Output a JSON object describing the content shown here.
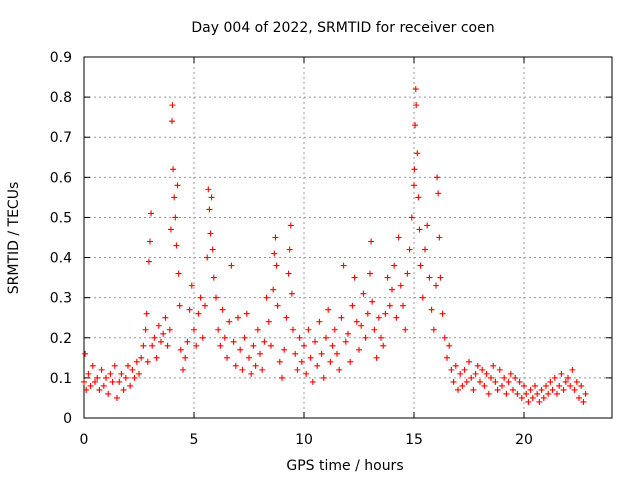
{
  "chart_data": {
    "type": "scatter",
    "title": "Day 004 of 2022, SRMTID for receiver coen",
    "xlabel": "GPS time / hours",
    "ylabel": "SRMTID / TECUs",
    "xlim": [
      0,
      24
    ],
    "ylim": [
      0,
      0.9
    ],
    "xticks": [
      0,
      5,
      10,
      15,
      20
    ],
    "yticks": [
      0,
      0.1,
      0.2,
      0.3,
      0.4,
      0.5,
      0.6,
      0.7,
      0.8,
      0.9
    ],
    "grid": true,
    "marker": "+",
    "color": "#ff0000",
    "series": [
      {
        "name": "SRMTID",
        "points": [
          [
            0.0,
            0.09
          ],
          [
            0.05,
            0.16
          ],
          [
            0.1,
            0.07
          ],
          [
            0.2,
            0.11
          ],
          [
            0.3,
            0.08
          ],
          [
            0.4,
            0.13
          ],
          [
            0.5,
            0.09
          ],
          [
            0.6,
            0.1
          ],
          [
            0.7,
            0.07
          ],
          [
            0.8,
            0.12
          ],
          [
            0.9,
            0.08
          ],
          [
            1.0,
            0.1
          ],
          [
            1.1,
            0.06
          ],
          [
            1.2,
            0.11
          ],
          [
            1.3,
            0.09
          ],
          [
            1.4,
            0.13
          ],
          [
            1.5,
            0.05
          ],
          [
            1.6,
            0.09
          ],
          [
            1.7,
            0.11
          ],
          [
            1.8,
            0.07
          ],
          [
            1.9,
            0.1
          ],
          [
            2.0,
            0.13
          ],
          [
            2.1,
            0.08
          ],
          [
            2.2,
            0.12
          ],
          [
            2.3,
            0.1
          ],
          [
            2.4,
            0.14
          ],
          [
            2.5,
            0.11
          ],
          [
            2.6,
            0.15
          ],
          [
            2.7,
            0.18
          ],
          [
            2.8,
            0.22
          ],
          [
            2.85,
            0.26
          ],
          [
            2.9,
            0.14
          ],
          [
            2.95,
            0.39
          ],
          [
            3.0,
            0.44
          ],
          [
            3.05,
            0.51
          ],
          [
            3.1,
            0.18
          ],
          [
            3.2,
            0.2
          ],
          [
            3.3,
            0.15
          ],
          [
            3.4,
            0.23
          ],
          [
            3.5,
            0.19
          ],
          [
            3.6,
            0.21
          ],
          [
            3.7,
            0.25
          ],
          [
            3.8,
            0.18
          ],
          [
            3.9,
            0.22
          ],
          [
            3.95,
            0.47
          ],
          [
            4.0,
            0.74
          ],
          [
            4.02,
            0.78
          ],
          [
            4.05,
            0.62
          ],
          [
            4.1,
            0.55
          ],
          [
            4.15,
            0.5
          ],
          [
            4.2,
            0.43
          ],
          [
            4.25,
            0.58
          ],
          [
            4.3,
            0.36
          ],
          [
            4.35,
            0.28
          ],
          [
            4.4,
            0.17
          ],
          [
            4.5,
            0.12
          ],
          [
            4.6,
            0.15
          ],
          [
            4.7,
            0.19
          ],
          [
            4.8,
            0.27
          ],
          [
            4.9,
            0.33
          ],
          [
            5.0,
            0.22
          ],
          [
            5.1,
            0.18
          ],
          [
            5.2,
            0.26
          ],
          [
            5.3,
            0.3
          ],
          [
            5.4,
            0.2
          ],
          [
            5.5,
            0.28
          ],
          [
            5.6,
            0.4
          ],
          [
            5.65,
            0.57
          ],
          [
            5.7,
            0.52
          ],
          [
            5.75,
            0.46
          ],
          [
            5.8,
            0.55
          ],
          [
            5.85,
            0.42
          ],
          [
            5.9,
            0.35
          ],
          [
            6.0,
            0.3
          ],
          [
            6.1,
            0.22
          ],
          [
            6.2,
            0.18
          ],
          [
            6.3,
            0.27
          ],
          [
            6.4,
            0.2
          ],
          [
            6.5,
            0.15
          ],
          [
            6.6,
            0.24
          ],
          [
            6.7,
            0.38
          ],
          [
            6.8,
            0.19
          ],
          [
            6.9,
            0.13
          ],
          [
            7.0,
            0.25
          ],
          [
            7.1,
            0.17
          ],
          [
            7.2,
            0.12
          ],
          [
            7.3,
            0.2
          ],
          [
            7.4,
            0.26
          ],
          [
            7.5,
            0.15
          ],
          [
            7.6,
            0.11
          ],
          [
            7.7,
            0.18
          ],
          [
            7.8,
            0.13
          ],
          [
            7.9,
            0.22
          ],
          [
            8.0,
            0.16
          ],
          [
            8.1,
            0.12
          ],
          [
            8.2,
            0.19
          ],
          [
            8.3,
            0.3
          ],
          [
            8.4,
            0.24
          ],
          [
            8.5,
            0.18
          ],
          [
            8.6,
            0.32
          ],
          [
            8.65,
            0.41
          ],
          [
            8.7,
            0.45
          ],
          [
            8.75,
            0.38
          ],
          [
            8.8,
            0.28
          ],
          [
            8.9,
            0.14
          ],
          [
            9.0,
            0.1
          ],
          [
            9.1,
            0.17
          ],
          [
            9.2,
            0.25
          ],
          [
            9.3,
            0.36
          ],
          [
            9.35,
            0.42
          ],
          [
            9.4,
            0.48
          ],
          [
            9.45,
            0.31
          ],
          [
            9.5,
            0.22
          ],
          [
            9.6,
            0.16
          ],
          [
            9.7,
            0.12
          ],
          [
            9.8,
            0.2
          ],
          [
            9.9,
            0.14
          ],
          [
            10.0,
            0.18
          ],
          [
            10.1,
            0.11
          ],
          [
            10.2,
            0.22
          ],
          [
            10.3,
            0.15
          ],
          [
            10.4,
            0.09
          ],
          [
            10.5,
            0.19
          ],
          [
            10.6,
            0.13
          ],
          [
            10.7,
            0.24
          ],
          [
            10.8,
            0.16
          ],
          [
            10.9,
            0.1
          ],
          [
            11.0,
            0.2
          ],
          [
            11.1,
            0.27
          ],
          [
            11.2,
            0.14
          ],
          [
            11.3,
            0.18
          ],
          [
            11.4,
            0.22
          ],
          [
            11.5,
            0.16
          ],
          [
            11.6,
            0.12
          ],
          [
            11.7,
            0.25
          ],
          [
            11.8,
            0.38
          ],
          [
            11.9,
            0.19
          ],
          [
            12.0,
            0.21
          ],
          [
            12.1,
            0.14
          ],
          [
            12.2,
            0.28
          ],
          [
            12.3,
            0.35
          ],
          [
            12.4,
            0.24
          ],
          [
            12.5,
            0.17
          ],
          [
            12.6,
            0.23
          ],
          [
            12.7,
            0.31
          ],
          [
            12.8,
            0.2
          ],
          [
            12.9,
            0.26
          ],
          [
            13.0,
            0.36
          ],
          [
            13.05,
            0.44
          ],
          [
            13.1,
            0.29
          ],
          [
            13.2,
            0.22
          ],
          [
            13.3,
            0.15
          ],
          [
            13.4,
            0.25
          ],
          [
            13.5,
            0.2
          ],
          [
            13.6,
            0.18
          ],
          [
            13.7,
            0.26
          ],
          [
            13.8,
            0.35
          ],
          [
            13.9,
            0.28
          ],
          [
            14.0,
            0.32
          ],
          [
            14.1,
            0.38
          ],
          [
            14.2,
            0.25
          ],
          [
            14.3,
            0.45
          ],
          [
            14.4,
            0.33
          ],
          [
            14.5,
            0.28
          ],
          [
            14.6,
            0.22
          ],
          [
            14.7,
            0.36
          ],
          [
            14.8,
            0.42
          ],
          [
            14.9,
            0.5
          ],
          [
            15.0,
            0.58
          ],
          [
            15.02,
            0.62
          ],
          [
            15.05,
            0.73
          ],
          [
            15.08,
            0.82
          ],
          [
            15.1,
            0.78
          ],
          [
            15.15,
            0.66
          ],
          [
            15.2,
            0.55
          ],
          [
            15.25,
            0.47
          ],
          [
            15.3,
            0.38
          ],
          [
            15.4,
            0.3
          ],
          [
            15.5,
            0.42
          ],
          [
            15.6,
            0.48
          ],
          [
            15.7,
            0.35
          ],
          [
            15.8,
            0.27
          ],
          [
            15.9,
            0.22
          ],
          [
            16.0,
            0.33
          ],
          [
            16.05,
            0.6
          ],
          [
            16.1,
            0.56
          ],
          [
            16.15,
            0.45
          ],
          [
            16.2,
            0.35
          ],
          [
            16.3,
            0.26
          ],
          [
            16.4,
            0.2
          ],
          [
            16.5,
            0.15
          ],
          [
            16.6,
            0.18
          ],
          [
            16.7,
            0.12
          ],
          [
            16.8,
            0.09
          ],
          [
            16.9,
            0.13
          ],
          [
            17.0,
            0.07
          ],
          [
            17.1,
            0.11
          ],
          [
            17.2,
            0.08
          ],
          [
            17.3,
            0.12
          ],
          [
            17.4,
            0.09
          ],
          [
            17.5,
            0.14
          ],
          [
            17.6,
            0.1
          ],
          [
            17.7,
            0.07
          ],
          [
            17.8,
            0.11
          ],
          [
            17.9,
            0.13
          ],
          [
            18.0,
            0.09
          ],
          [
            18.1,
            0.12
          ],
          [
            18.2,
            0.08
          ],
          [
            18.3,
            0.11
          ],
          [
            18.4,
            0.06
          ],
          [
            18.5,
            0.1
          ],
          [
            18.6,
            0.13
          ],
          [
            18.7,
            0.09
          ],
          [
            18.8,
            0.07
          ],
          [
            18.9,
            0.12
          ],
          [
            19.0,
            0.08
          ],
          [
            19.1,
            0.1
          ],
          [
            19.2,
            0.06
          ],
          [
            19.3,
            0.09
          ],
          [
            19.4,
            0.11
          ],
          [
            19.5,
            0.07
          ],
          [
            19.6,
            0.1
          ],
          [
            19.7,
            0.06
          ],
          [
            19.8,
            0.09
          ],
          [
            19.9,
            0.05
          ],
          [
            20.0,
            0.08
          ],
          [
            20.1,
            0.06
          ],
          [
            20.2,
            0.04
          ],
          [
            20.3,
            0.07
          ],
          [
            20.4,
            0.05
          ],
          [
            20.5,
            0.08
          ],
          [
            20.6,
            0.06
          ],
          [
            20.7,
            0.04
          ],
          [
            20.8,
            0.07
          ],
          [
            20.9,
            0.05
          ],
          [
            21.0,
            0.08
          ],
          [
            21.1,
            0.06
          ],
          [
            21.2,
            0.09
          ],
          [
            21.3,
            0.07
          ],
          [
            21.4,
            0.1
          ],
          [
            21.5,
            0.06
          ],
          [
            21.6,
            0.08
          ],
          [
            21.7,
            0.11
          ],
          [
            21.8,
            0.07
          ],
          [
            21.9,
            0.09
          ],
          [
            22.0,
            0.1
          ],
          [
            22.1,
            0.08
          ],
          [
            22.2,
            0.12
          ],
          [
            22.3,
            0.07
          ],
          [
            22.4,
            0.09
          ],
          [
            22.5,
            0.05
          ],
          [
            22.6,
            0.08
          ],
          [
            22.7,
            0.04
          ],
          [
            22.8,
            0.06
          ]
        ]
      }
    ]
  }
}
